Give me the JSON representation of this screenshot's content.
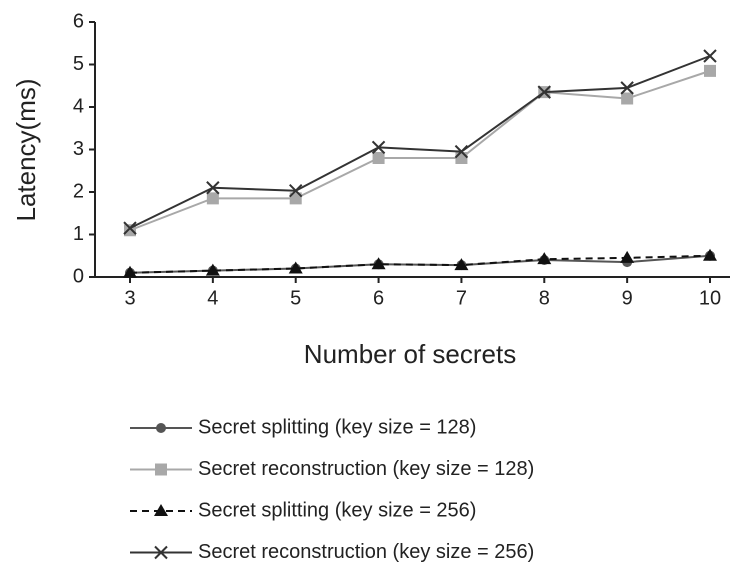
{
  "chart_data": {
    "type": "line",
    "y_label": "Latency(ms)",
    "x_label": "Number of secrets",
    "categories": [
      "3",
      "4",
      "5",
      "6",
      "7",
      "8",
      "9",
      "10"
    ],
    "ylim": [
      0,
      6
    ],
    "yticks": [
      0,
      1,
      2,
      3,
      4,
      5,
      6
    ],
    "series": [
      {
        "name": "Secret splitting (key size = 128)",
        "color": "#555555",
        "marker": "circle",
        "dash": false,
        "values": [
          0.1,
          0.15,
          0.2,
          0.3,
          0.28,
          0.4,
          0.35,
          0.5
        ]
      },
      {
        "name": "Secret reconstruction (key size = 128)",
        "color": "#a8a8a8",
        "marker": "square",
        "dash": false,
        "values": [
          1.1,
          1.85,
          1.85,
          2.8,
          2.8,
          4.35,
          4.2,
          4.85
        ]
      },
      {
        "name": "Secret splitting (key size = 256)",
        "color": "#111111",
        "marker": "triangle",
        "dash": true,
        "values": [
          0.1,
          0.15,
          0.2,
          0.3,
          0.28,
          0.42,
          0.45,
          0.5
        ]
      },
      {
        "name": "Secret reconstruction (key size = 256)",
        "color": "#333333",
        "marker": "x",
        "dash": false,
        "values": [
          1.15,
          2.1,
          2.03,
          3.05,
          2.95,
          4.35,
          4.45,
          5.2
        ]
      }
    ]
  }
}
